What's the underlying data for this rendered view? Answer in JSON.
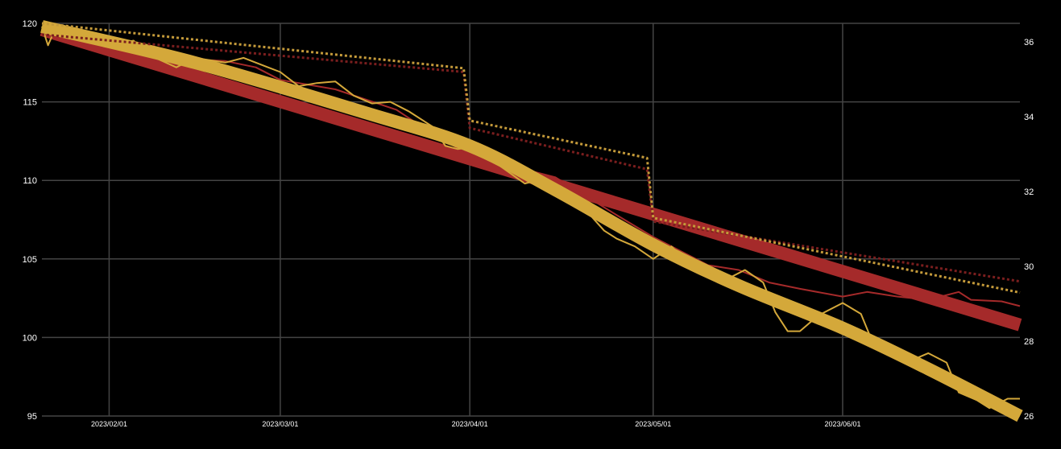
{
  "chart_data": {
    "type": "line",
    "title": "",
    "xlabel": "",
    "ylabel": "",
    "y2label": "",
    "grid": true,
    "legend": "none",
    "background": "#000000",
    "grid_color": "#444444",
    "x_range": [
      "2023-01-21",
      "2023-06-30"
    ],
    "ylim": [
      95,
      120
    ],
    "y2lim": [
      26,
      36.5
    ],
    "x_ticks": [
      "2023/02/01",
      "2023/03/01",
      "2023/04/01",
      "2023/05/01",
      "2023/06/01"
    ],
    "y_ticks": [
      "95",
      "100",
      "105",
      "110",
      "115",
      "120"
    ],
    "y2_ticks": [
      "26",
      "28",
      "30",
      "32",
      "34",
      "36"
    ],
    "series": [
      {
        "axis": "left",
        "style": "solid",
        "width": 2,
        "color": "#a52a2a",
        "points": [
          [
            "2023-01-21",
            119.6
          ],
          [
            "2023-01-25",
            119.4
          ],
          [
            "2023-02-01",
            118.9
          ],
          [
            "2023-02-05",
            118.3
          ],
          [
            "2023-02-10",
            117.8
          ],
          [
            "2023-02-15",
            117.7
          ],
          [
            "2023-02-20",
            117.6
          ],
          [
            "2023-02-25",
            117.2
          ],
          [
            "2023-03-01",
            116.4
          ],
          [
            "2023-03-10",
            115.8
          ],
          [
            "2023-03-20",
            114.5
          ],
          [
            "2023-03-25",
            113.2
          ],
          [
            "2023-04-01",
            111.6
          ],
          [
            "2023-04-08",
            110.9
          ],
          [
            "2023-04-15",
            110.2
          ],
          [
            "2023-04-20",
            109.0
          ],
          [
            "2023-04-25",
            107.8
          ],
          [
            "2023-05-01",
            106.4
          ],
          [
            "2023-05-05",
            105.6
          ],
          [
            "2023-05-10",
            104.6
          ],
          [
            "2023-05-15",
            104.3
          ],
          [
            "2023-05-20",
            103.5
          ],
          [
            "2023-05-25",
            103.1
          ],
          [
            "2023-06-01",
            102.6
          ],
          [
            "2023-06-05",
            102.9
          ],
          [
            "2023-06-10",
            102.6
          ],
          [
            "2023-06-15",
            102.4
          ],
          [
            "2023-06-20",
            102.9
          ],
          [
            "2023-06-22",
            102.4
          ],
          [
            "2023-06-27",
            102.3
          ],
          [
            "2023-06-30",
            102.0
          ]
        ]
      },
      {
        "axis": "left",
        "style": "solid",
        "width": 2,
        "color": "#d4a83a",
        "points": [
          [
            "2023-01-21",
            119.8
          ],
          [
            "2023-01-22",
            118.6
          ],
          [
            "2023-01-23",
            119.5
          ],
          [
            "2023-01-26",
            119.6
          ],
          [
            "2023-01-29",
            119.1
          ],
          [
            "2023-02-01",
            118.6
          ],
          [
            "2023-02-05",
            118.9
          ],
          [
            "2023-02-08",
            117.9
          ],
          [
            "2023-02-12",
            117.2
          ],
          [
            "2023-02-15",
            117.8
          ],
          [
            "2023-02-20",
            117.5
          ],
          [
            "2023-02-23",
            117.8
          ],
          [
            "2023-02-27",
            117.2
          ],
          [
            "2023-03-01",
            116.9
          ],
          [
            "2023-03-04",
            116.0
          ],
          [
            "2023-03-07",
            116.2
          ],
          [
            "2023-03-10",
            116.3
          ],
          [
            "2023-03-13",
            115.4
          ],
          [
            "2023-03-16",
            114.9
          ],
          [
            "2023-03-19",
            115.0
          ],
          [
            "2023-03-22",
            114.4
          ],
          [
            "2023-03-26",
            113.4
          ],
          [
            "2023-03-28",
            112.2
          ],
          [
            "2023-03-30",
            112.0
          ],
          [
            "2023-04-01",
            112.1
          ],
          [
            "2023-04-04",
            111.7
          ],
          [
            "2023-04-06",
            110.9
          ],
          [
            "2023-04-10",
            109.8
          ],
          [
            "2023-04-13",
            110.1
          ],
          [
            "2023-04-16",
            109.6
          ],
          [
            "2023-04-20",
            108.1
          ],
          [
            "2023-04-23",
            106.8
          ],
          [
            "2023-04-25",
            106.3
          ],
          [
            "2023-04-28",
            105.8
          ],
          [
            "2023-05-01",
            105.0
          ],
          [
            "2023-05-04",
            105.8
          ],
          [
            "2023-05-07",
            104.7
          ],
          [
            "2023-05-10",
            104.2
          ],
          [
            "2023-05-13",
            103.7
          ],
          [
            "2023-05-16",
            104.3
          ],
          [
            "2023-05-19",
            103.5
          ],
          [
            "2023-05-21",
            101.6
          ],
          [
            "2023-05-23",
            100.4
          ],
          [
            "2023-05-25",
            100.4
          ],
          [
            "2023-05-28",
            101.4
          ],
          [
            "2023-06-01",
            102.2
          ],
          [
            "2023-06-04",
            101.5
          ],
          [
            "2023-06-06",
            99.6
          ],
          [
            "2023-06-09",
            99.1
          ],
          [
            "2023-06-12",
            98.5
          ],
          [
            "2023-06-15",
            99.0
          ],
          [
            "2023-06-18",
            98.4
          ],
          [
            "2023-06-20",
            96.5
          ],
          [
            "2023-06-23",
            96.0
          ],
          [
            "2023-06-25",
            95.5
          ],
          [
            "2023-06-28",
            96.1
          ],
          [
            "2023-06-30",
            96.1
          ]
        ]
      },
      {
        "axis": "left",
        "style": "band",
        "width": 16,
        "color": "#a52a2a",
        "points": [
          [
            "2023-01-21",
            119.6
          ],
          [
            "2023-06-30",
            100.8
          ]
        ]
      },
      {
        "axis": "left",
        "style": "curve",
        "width": 16,
        "color": "#d4a83a",
        "points": [
          [
            "2023-01-21",
            119.8
          ],
          [
            "2023-02-15",
            117.5
          ],
          [
            "2023-03-15",
            114.3
          ],
          [
            "2023-04-01",
            112.2
          ],
          [
            "2023-04-15",
            109.4
          ],
          [
            "2023-05-01",
            105.9
          ],
          [
            "2023-05-15",
            103.3
          ],
          [
            "2023-06-01",
            100.6
          ],
          [
            "2023-06-15",
            98.0
          ],
          [
            "2023-06-30",
            95.0
          ]
        ]
      },
      {
        "axis": "right",
        "style": "dotted",
        "width": 3,
        "color": "#7a1e1e",
        "points": [
          [
            "2023-01-21",
            36.2
          ],
          [
            "2023-03-31",
            35.2
          ],
          [
            "2023-04-01",
            33.7
          ],
          [
            "2023-04-30",
            32.6
          ],
          [
            "2023-05-01",
            31.2
          ],
          [
            "2023-06-30",
            29.6
          ]
        ]
      },
      {
        "axis": "right",
        "style": "dotted",
        "width": 3,
        "color": "#c49a3a",
        "points": [
          [
            "2023-01-21",
            36.5
          ],
          [
            "2023-03-31",
            35.3
          ],
          [
            "2023-04-01",
            33.9
          ],
          [
            "2023-04-30",
            32.9
          ],
          [
            "2023-05-01",
            31.3
          ],
          [
            "2023-06-30",
            29.3
          ]
        ]
      }
    ]
  }
}
